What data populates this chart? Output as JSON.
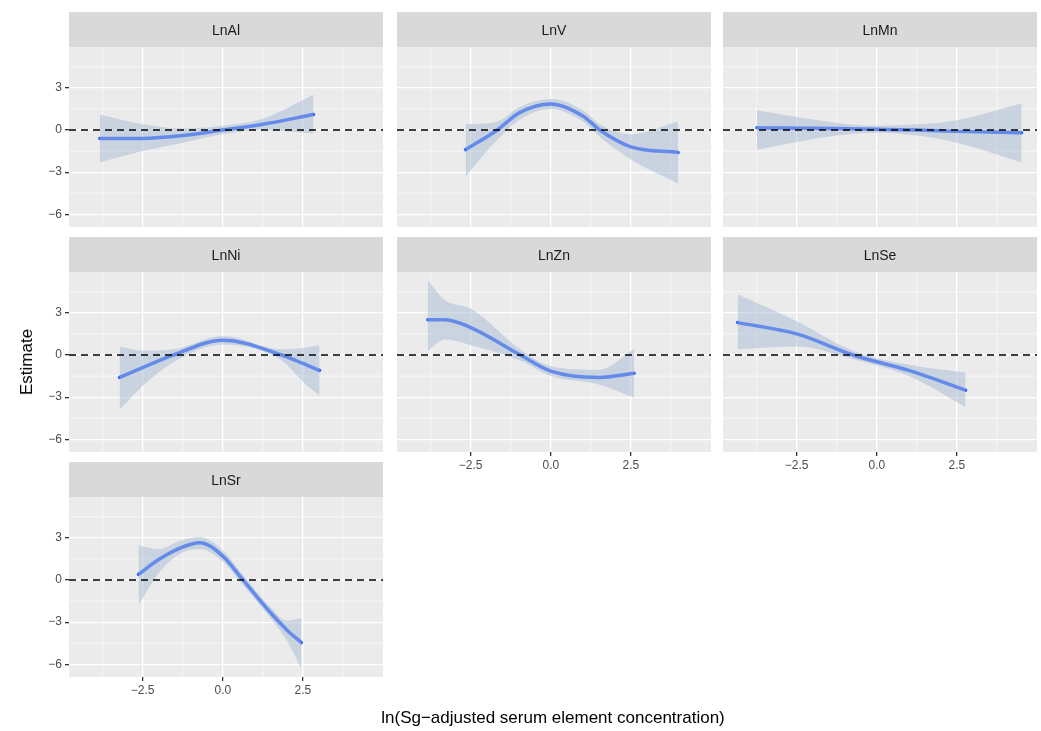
{
  "chart_data": [
    {
      "type": "line",
      "title": "LnAl",
      "xlim": [
        -4.8,
        5.0
      ],
      "ylim": [
        -6.9,
        5.9
      ],
      "xticks": [
        -2.5,
        0,
        2.5
      ],
      "yticks": [
        {
          "value": 3,
          "label": "3"
        },
        {
          "value": 0,
          "label": "0"
        },
        {
          "value": -3,
          "label": "−3"
        },
        {
          "value": -6,
          "label": "−6"
        }
      ],
      "grid": true,
      "tick_labels": "y",
      "ref_lines": [
        {
          "axis": "y",
          "value": 0,
          "color": "#000000",
          "line_style": "dashed"
        }
      ],
      "series": [
        {
          "color": "#3366ff",
          "x": [
            -3.84,
            -2.5,
            -1.25,
            0,
            1.25,
            2.83
          ],
          "values": [
            -0.6,
            -0.6,
            -0.4,
            0,
            0.4,
            1.1
          ],
          "lower": [
            -2.3,
            -1.5,
            -0.9,
            -0.3,
            0,
            -0.25
          ],
          "upper": [
            1.1,
            0.4,
            0.1,
            0.3,
            0.8,
            2.5
          ]
        }
      ]
    },
    {
      "type": "line",
      "title": "LnV",
      "xlim": [
        -4.8,
        5.0
      ],
      "ylim": [
        -6.9,
        5.9
      ],
      "xticks": [
        -2.5,
        0,
        2.5
      ],
      "yticks": [
        3,
        0,
        -3,
        -6
      ],
      "grid": true,
      "tick_labels": false,
      "ref_lines": [
        {
          "axis": "y",
          "value": 0,
          "color": "#000000",
          "line_style": "dashed"
        }
      ],
      "series": [
        {
          "color": "#3366ff",
          "x": [
            -2.66,
            -1.67,
            -1,
            0,
            1,
            1.53,
            2.5,
            3.97
          ],
          "values": [
            -1.4,
            0,
            1.2,
            1.85,
            1.0,
            0,
            -1.2,
            -1.6
          ],
          "lower": [
            -3.3,
            -0.7,
            0.7,
            1.5,
            0.6,
            -0.5,
            -2.1,
            -3.8
          ],
          "upper": [
            0.4,
            0.6,
            1.6,
            2.2,
            1.4,
            0.4,
            -0.3,
            0.6
          ]
        }
      ]
    },
    {
      "type": "line",
      "title": "LnMn",
      "xlim": [
        -4.8,
        5.0
      ],
      "ylim": [
        -6.9,
        5.9
      ],
      "xticks": [
        -2.5,
        0,
        2.5
      ],
      "yticks": [
        3,
        0,
        -3,
        -6
      ],
      "grid": true,
      "tick_labels": false,
      "ref_lines": [
        {
          "axis": "y",
          "value": 0,
          "color": "#000000",
          "line_style": "dashed"
        }
      ],
      "series": [
        {
          "color": "#3366ff",
          "x": [
            -3.74,
            -1.25,
            0,
            1.25,
            2.5,
            4.52
          ],
          "values": [
            0.15,
            0.1,
            0.05,
            0,
            -0.1,
            -0.2
          ],
          "lower": [
            -1.4,
            -0.4,
            -0.2,
            -0.4,
            -0.9,
            -2.3
          ],
          "upper": [
            1.4,
            0.5,
            0.3,
            0.4,
            0.7,
            1.9
          ]
        }
      ]
    },
    {
      "type": "line",
      "title": "LnNi",
      "ylabel": "Estimate",
      "xlim": [
        -4.8,
        5.0
      ],
      "ylim": [
        -6.9,
        5.9
      ],
      "xticks": [
        -2.5,
        0,
        2.5
      ],
      "yticks": [
        {
          "value": 3,
          "label": "3"
        },
        {
          "value": 0,
          "label": "0"
        },
        {
          "value": -3,
          "label": "−3"
        },
        {
          "value": -6,
          "label": "−6"
        }
      ],
      "grid": true,
      "tick_labels": "y",
      "ref_lines": [
        {
          "axis": "y",
          "value": 0,
          "color": "#000000",
          "line_style": "dashed"
        }
      ],
      "series": [
        {
          "color": "#3366ff",
          "x": [
            -3.22,
            -2.5,
            -1.53,
            0,
            1.84,
            2.5,
            3.02
          ],
          "values": [
            -1.6,
            -0.9,
            0,
            1.05,
            0,
            -0.6,
            -1.1
          ],
          "lower": [
            -3.9,
            -2.2,
            -0.5,
            0.75,
            -0.4,
            -1.9,
            -2.9
          ],
          "upper": [
            0.6,
            0.3,
            0.4,
            1.35,
            0.4,
            0.5,
            0.7
          ]
        }
      ]
    },
    {
      "type": "line",
      "title": "LnZn",
      "xlim": [
        -4.8,
        5.0
      ],
      "ylim": [
        -6.9,
        5.9
      ],
      "xticks": [
        {
          "value": -2.5,
          "label": "−2.5"
        },
        {
          "value": 0,
          "label": "0.0"
        },
        {
          "value": 2.5,
          "label": "2.5"
        }
      ],
      "yticks": [
        3,
        0,
        -3,
        -6
      ],
      "grid": true,
      "tick_labels": "x",
      "ref_lines": [
        {
          "axis": "y",
          "value": 0,
          "color": "#000000",
          "line_style": "dashed"
        }
      ],
      "series": [
        {
          "color": "#3366ff",
          "x": [
            -3.84,
            -3.3,
            -2.5,
            -0.95,
            0,
            1.5,
            2.6
          ],
          "values": [
            2.5,
            2.5,
            1.95,
            0,
            -1.15,
            -1.6,
            -1.3
          ],
          "lower": [
            0.3,
            1.1,
            0.7,
            -0.4,
            -1.5,
            -2.1,
            -3.05
          ],
          "upper": [
            5.3,
            3.9,
            3.3,
            0.4,
            -0.8,
            -1.05,
            0.45
          ]
        }
      ]
    },
    {
      "type": "line",
      "title": "LnSe",
      "xlim": [
        -4.8,
        5.0
      ],
      "ylim": [
        -6.9,
        5.9
      ],
      "xticks": [
        {
          "value": -2.5,
          "label": "−2.5"
        },
        {
          "value": 0,
          "label": "0.0"
        },
        {
          "value": 2.5,
          "label": "2.5"
        }
      ],
      "yticks": [
        3,
        0,
        -3,
        -6
      ],
      "grid": true,
      "tick_labels": "x",
      "ref_lines": [
        {
          "axis": "y",
          "value": 0,
          "color": "#000000",
          "line_style": "dashed"
        }
      ],
      "series": [
        {
          "color": "#3366ff",
          "x": [
            -4.34,
            -2.5,
            -0.74,
            1,
            2.77
          ],
          "values": [
            2.3,
            1.5,
            0,
            -1.1,
            -2.5
          ],
          "lower": [
            0.4,
            0.6,
            -0.3,
            -1.5,
            -3.7
          ],
          "upper": [
            4.3,
            2.4,
            0.3,
            -0.7,
            -1.25
          ]
        }
      ]
    },
    {
      "type": "line",
      "title": "LnSr",
      "xlabel": "ln(Sg−adjusted serum element concentration)",
      "xlim": [
        -4.8,
        5.0
      ],
      "ylim": [
        -6.9,
        5.9
      ],
      "xticks": [
        {
          "value": -2.5,
          "label": "−2.5"
        },
        {
          "value": 0,
          "label": "0.0"
        },
        {
          "value": 2.5,
          "label": "2.5"
        }
      ],
      "yticks": [
        {
          "value": 3,
          "label": "3"
        },
        {
          "value": 0,
          "label": "0"
        },
        {
          "value": -3,
          "label": "−3"
        },
        {
          "value": -6,
          "label": "−6"
        }
      ],
      "grid": true,
      "ref_lines": [
        {
          "axis": "y",
          "value": 0,
          "color": "#000000",
          "line_style": "dashed"
        }
      ],
      "series": [
        {
          "color": "#3366ff",
          "x": [
            -2.63,
            -2,
            -1.3,
            -0.72,
            0,
            0.63,
            1.5,
            2,
            2.45
          ],
          "values": [
            0.4,
            1.45,
            2.3,
            2.65,
            1.7,
            0,
            -2.35,
            -3.55,
            -4.45
          ],
          "lower": [
            -1.8,
            0.5,
            1.9,
            2.2,
            1.3,
            -0.35,
            -2.75,
            -4.3,
            -6.3
          ],
          "upper": [
            2.45,
            2.2,
            2.8,
            3.05,
            2.1,
            0.35,
            -1.95,
            -2.9,
            -2.7
          ]
        }
      ]
    }
  ]
}
